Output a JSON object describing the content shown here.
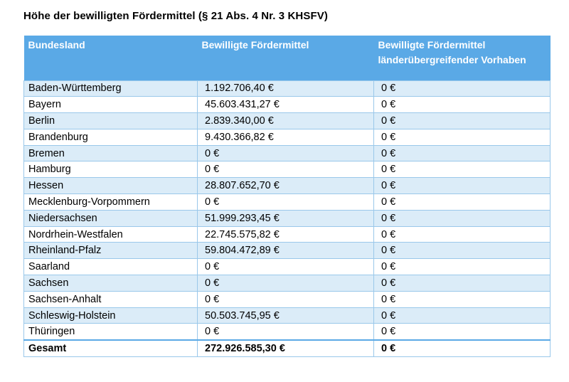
{
  "title": "Höhe der bewilligten Fördermittel (§ 21 Abs. 4 Nr. 3 KHSFV)",
  "table": {
    "headers": [
      "Bundesland",
      "Bewilligte Fördermittel",
      "Bewilligte Fördermittel länderübergreifender Vorhaben"
    ],
    "rows": [
      [
        "Baden-Württemberg",
        "1.192.706,40 €",
        "0 €"
      ],
      [
        "Bayern",
        "45.603.431,27 €",
        "0 €"
      ],
      [
        "Berlin",
        "2.839.340,00 €",
        "0 €"
      ],
      [
        "Brandenburg",
        "9.430.366,82 €",
        "0 €"
      ],
      [
        "Bremen",
        "0 €",
        "0 €"
      ],
      [
        "Hamburg",
        "0 €",
        "0 €"
      ],
      [
        "Hessen",
        "28.807.652,70 €",
        "0 €"
      ],
      [
        "Mecklenburg-Vorpommern",
        "0 €",
        "0 €"
      ],
      [
        "Niedersachsen",
        "51.999.293,45 €",
        "0 €"
      ],
      [
        "Nordrhein-Westfalen",
        "22.745.575,82 €",
        "0 €"
      ],
      [
        "Rheinland-Pfalz",
        "59.804.472,89 €",
        "0 €"
      ],
      [
        "Saarland",
        "0 €",
        "0 €"
      ],
      [
        "Sachsen",
        "0 €",
        "0 €"
      ],
      [
        "Sachsen-Anhalt",
        "0 €",
        "0 €"
      ],
      [
        "Schleswig-Holstein",
        "50.503.745,95 €",
        "0 €"
      ],
      [
        "Thüringen",
        "0 €",
        "0 €"
      ]
    ],
    "total": [
      "Gesamt",
      "272.926.585,30 €",
      "0 €"
    ]
  },
  "colors": {
    "header_bg": "#5aa9e6",
    "stripe_bg": "#dbecf8",
    "border": "#9ac8ea"
  }
}
